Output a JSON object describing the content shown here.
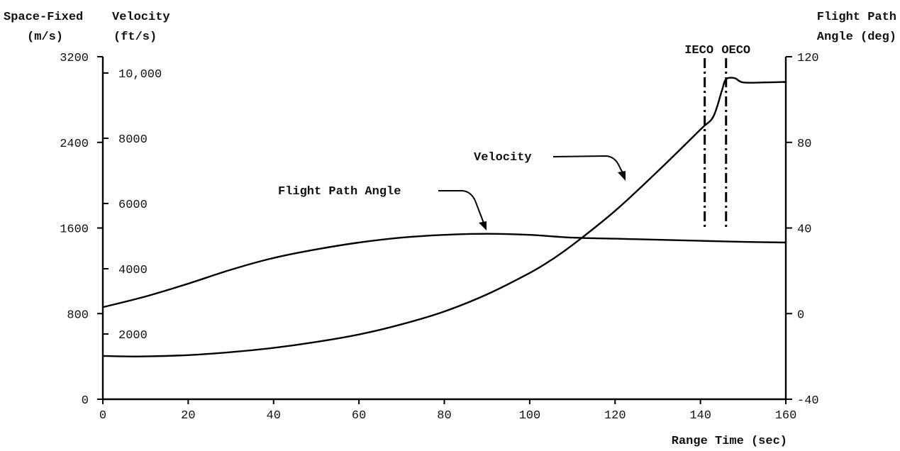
{
  "chart_data": {
    "type": "line",
    "x_axis": {
      "label": "Range Time (sec)",
      "range": [
        0,
        160
      ],
      "ticks": [
        0,
        20,
        40,
        60,
        80,
        100,
        120,
        140,
        160
      ],
      "tick_labels": [
        "0",
        "20",
        "40",
        "60",
        "80",
        "100",
        "120",
        "140",
        "160"
      ]
    },
    "left_axis_ms": {
      "label_line1": "Space-Fixed",
      "label_line2": "(m/s)",
      "range": [
        0,
        3200
      ],
      "ticks": [
        0,
        800,
        1600,
        2400,
        3200
      ],
      "tick_labels": [
        "0",
        "800",
        "1600",
        "2400",
        "3200"
      ]
    },
    "left_axis_fts": {
      "label_line1": "Velocity",
      "label_line2": "(ft/s)",
      "ticks": [
        2000,
        4000,
        6000,
        8000,
        10000
      ],
      "tick_labels": [
        "2000",
        "4000",
        "6000",
        "8000",
        "10,000"
      ]
    },
    "right_axis": {
      "label_line1": "Flight Path",
      "label_line2": "Angle (deg)",
      "range": [
        -40,
        120
      ],
      "ticks": [
        -40,
        0,
        40,
        80,
        120
      ],
      "tick_labels": [
        "-40",
        "0",
        "40",
        "80",
        "120"
      ]
    },
    "series": [
      {
        "name": "Velocity",
        "axis": "left_ms",
        "x": [
          0,
          5,
          10,
          20,
          30,
          40,
          50,
          60,
          70,
          80,
          90,
          100,
          105,
          110,
          120,
          130,
          140,
          143,
          145,
          146,
          148,
          150,
          155,
          160
        ],
        "y": [
          405,
          400,
          400,
          412,
          440,
          480,
          535,
          605,
          700,
          820,
          980,
          1180,
          1300,
          1440,
          1760,
          2130,
          2520,
          2640,
          2880,
          2990,
          3000,
          2960,
          2960,
          2965
        ]
      },
      {
        "name": "Flight Path Angle",
        "axis": "right",
        "x": [
          0,
          10,
          20,
          30,
          40,
          50,
          60,
          70,
          80,
          90,
          100,
          110,
          120,
          130,
          140,
          150,
          160
        ],
        "y": [
          3,
          8,
          14,
          20.5,
          26,
          30,
          33.2,
          35.5,
          36.8,
          37.3,
          36.8,
          35.5,
          35,
          34.5,
          34,
          33.5,
          33.2
        ]
      }
    ],
    "annotations": [
      {
        "text": "Velocity",
        "x": 122,
        "y": 2300
      },
      {
        "text": "Flight Path Angle",
        "x": 90,
        "y": 1600
      }
    ],
    "events": [
      {
        "label": "IECO",
        "x": 141
      },
      {
        "label": "OECO",
        "x": 146
      }
    ],
    "grid": false
  }
}
